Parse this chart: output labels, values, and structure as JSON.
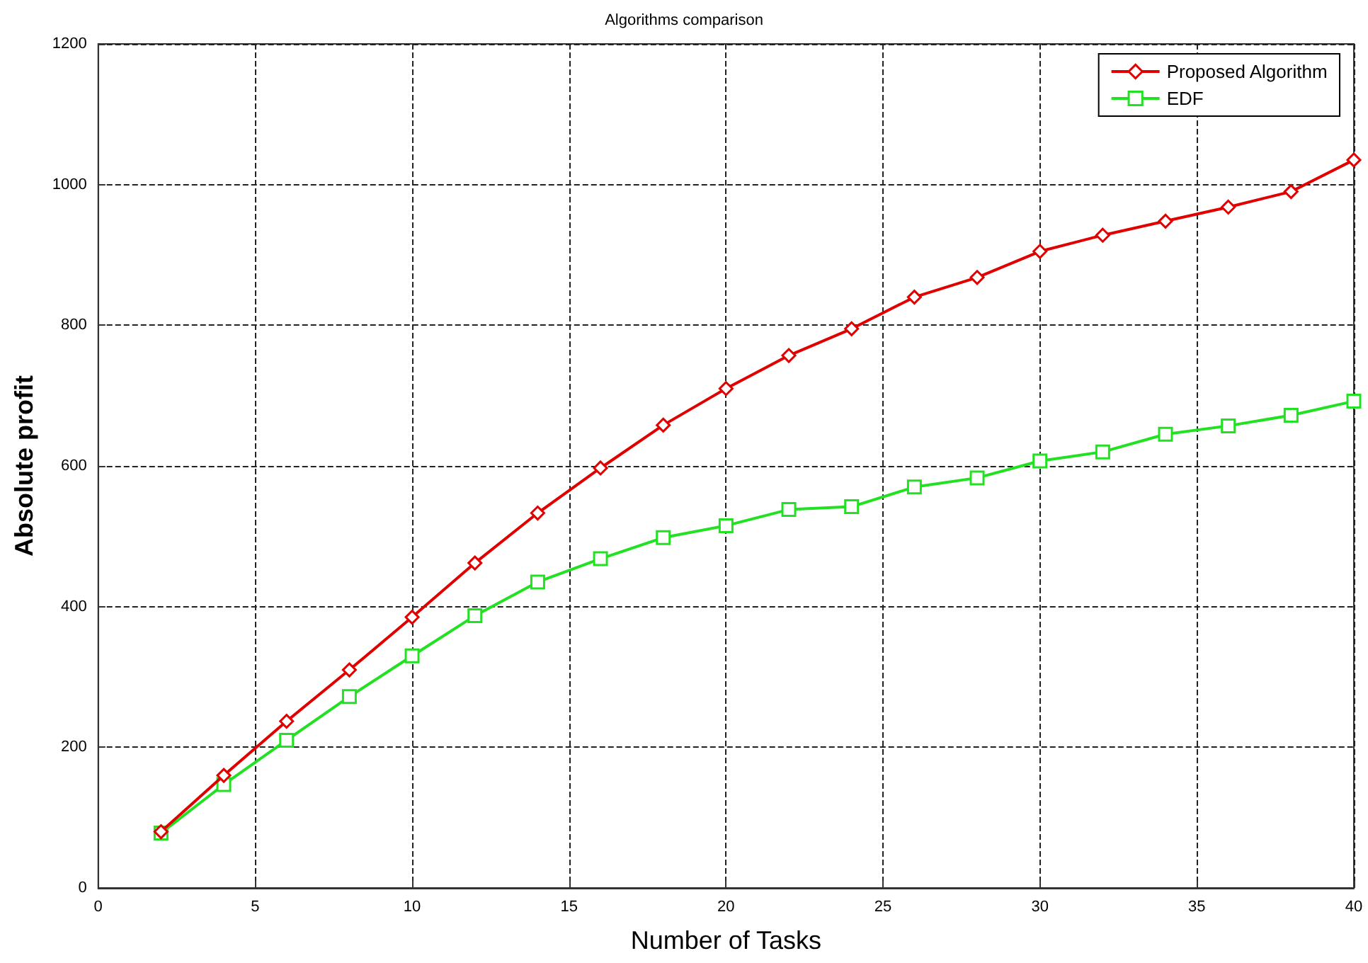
{
  "chart_data": {
    "type": "line",
    "title": "Algorithms comparison",
    "xlabel": "Number of Tasks",
    "ylabel": "Absolute profit",
    "x": [
      2,
      4,
      6,
      8,
      10,
      12,
      14,
      16,
      18,
      20,
      22,
      24,
      26,
      28,
      30,
      32,
      34,
      36,
      38,
      40
    ],
    "series": [
      {
        "name": "Proposed Algorithm",
        "color": "#e00000",
        "marker": "diamond",
        "values": [
          80,
          160,
          237,
          310,
          385,
          462,
          533,
          597,
          658,
          710,
          757,
          795,
          840,
          868,
          905,
          928,
          948,
          968,
          990,
          1035
        ]
      },
      {
        "name": "EDF",
        "color": "#22e022",
        "marker": "square",
        "values": [
          78,
          147,
          210,
          272,
          330,
          387,
          435,
          468,
          498,
          515,
          538,
          542,
          570,
          583,
          607,
          620,
          645,
          657,
          672,
          692
        ]
      }
    ],
    "xlim": [
      0,
      40
    ],
    "xticks": [
      0,
      5,
      10,
      15,
      20,
      25,
      30,
      35,
      40
    ],
    "ylim": [
      0,
      1200
    ],
    "yticks": [
      0,
      200,
      400,
      600,
      800,
      1000,
      1200
    ],
    "grid": true,
    "legend": "top right",
    "line_style": "solid"
  }
}
